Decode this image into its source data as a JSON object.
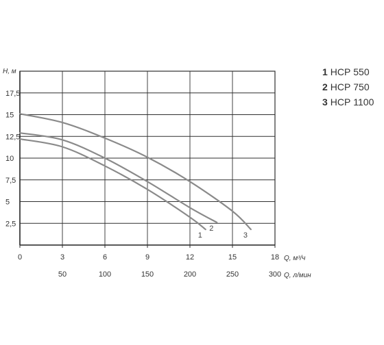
{
  "chart_data": {
    "type": "line",
    "ylabel": "Н, м",
    "xlabel": "Q, м³/ч",
    "xlabel2": "Q, л/мин",
    "xlim": [
      0,
      18
    ],
    "ylim": [
      0,
      20
    ],
    "x_ticks": [
      "0",
      "3",
      "6",
      "9",
      "12",
      "15",
      "18"
    ],
    "x_ticks_values": [
      0,
      3,
      6,
      9,
      12,
      15,
      18
    ],
    "x2_ticks": [
      "50",
      "100",
      "150",
      "200",
      "250",
      "300"
    ],
    "x2_ticks_values": [
      50,
      100,
      150,
      200,
      250,
      300
    ],
    "y_ticks": [
      "2,5",
      "5",
      "7,5",
      "10",
      "12,5",
      "15",
      "17,5"
    ],
    "y_ticks_values": [
      2.5,
      5,
      7.5,
      10,
      12.5,
      15,
      17.5
    ],
    "grid": true,
    "series": [
      {
        "name": "НСР 550",
        "label": "1",
        "x": [
          0,
          3,
          6,
          9,
          12,
          13.1
        ],
        "y": [
          12.2,
          11.3,
          9.1,
          6.4,
          3.2,
          1.8
        ]
      },
      {
        "name": "НСР 750",
        "label": "2",
        "x": [
          0,
          3,
          6,
          9,
          12,
          13.9
        ],
        "y": [
          12.9,
          12.1,
          10.0,
          7.3,
          4.3,
          2.6
        ]
      },
      {
        "name": "НСР 1100",
        "label": "3",
        "x": [
          0,
          3,
          6,
          9,
          12,
          15,
          16.3
        ],
        "y": [
          15.1,
          14.1,
          12.3,
          10.1,
          7.3,
          3.9,
          1.8
        ]
      }
    ],
    "series_color": "#8a8a8a",
    "grid_color": "#2e2e2e"
  },
  "legend": [
    {
      "num": "1",
      "text": "НСР 550"
    },
    {
      "num": "2",
      "text": "НСР 750"
    },
    {
      "num": "3",
      "text": "НСР 1100"
    }
  ]
}
